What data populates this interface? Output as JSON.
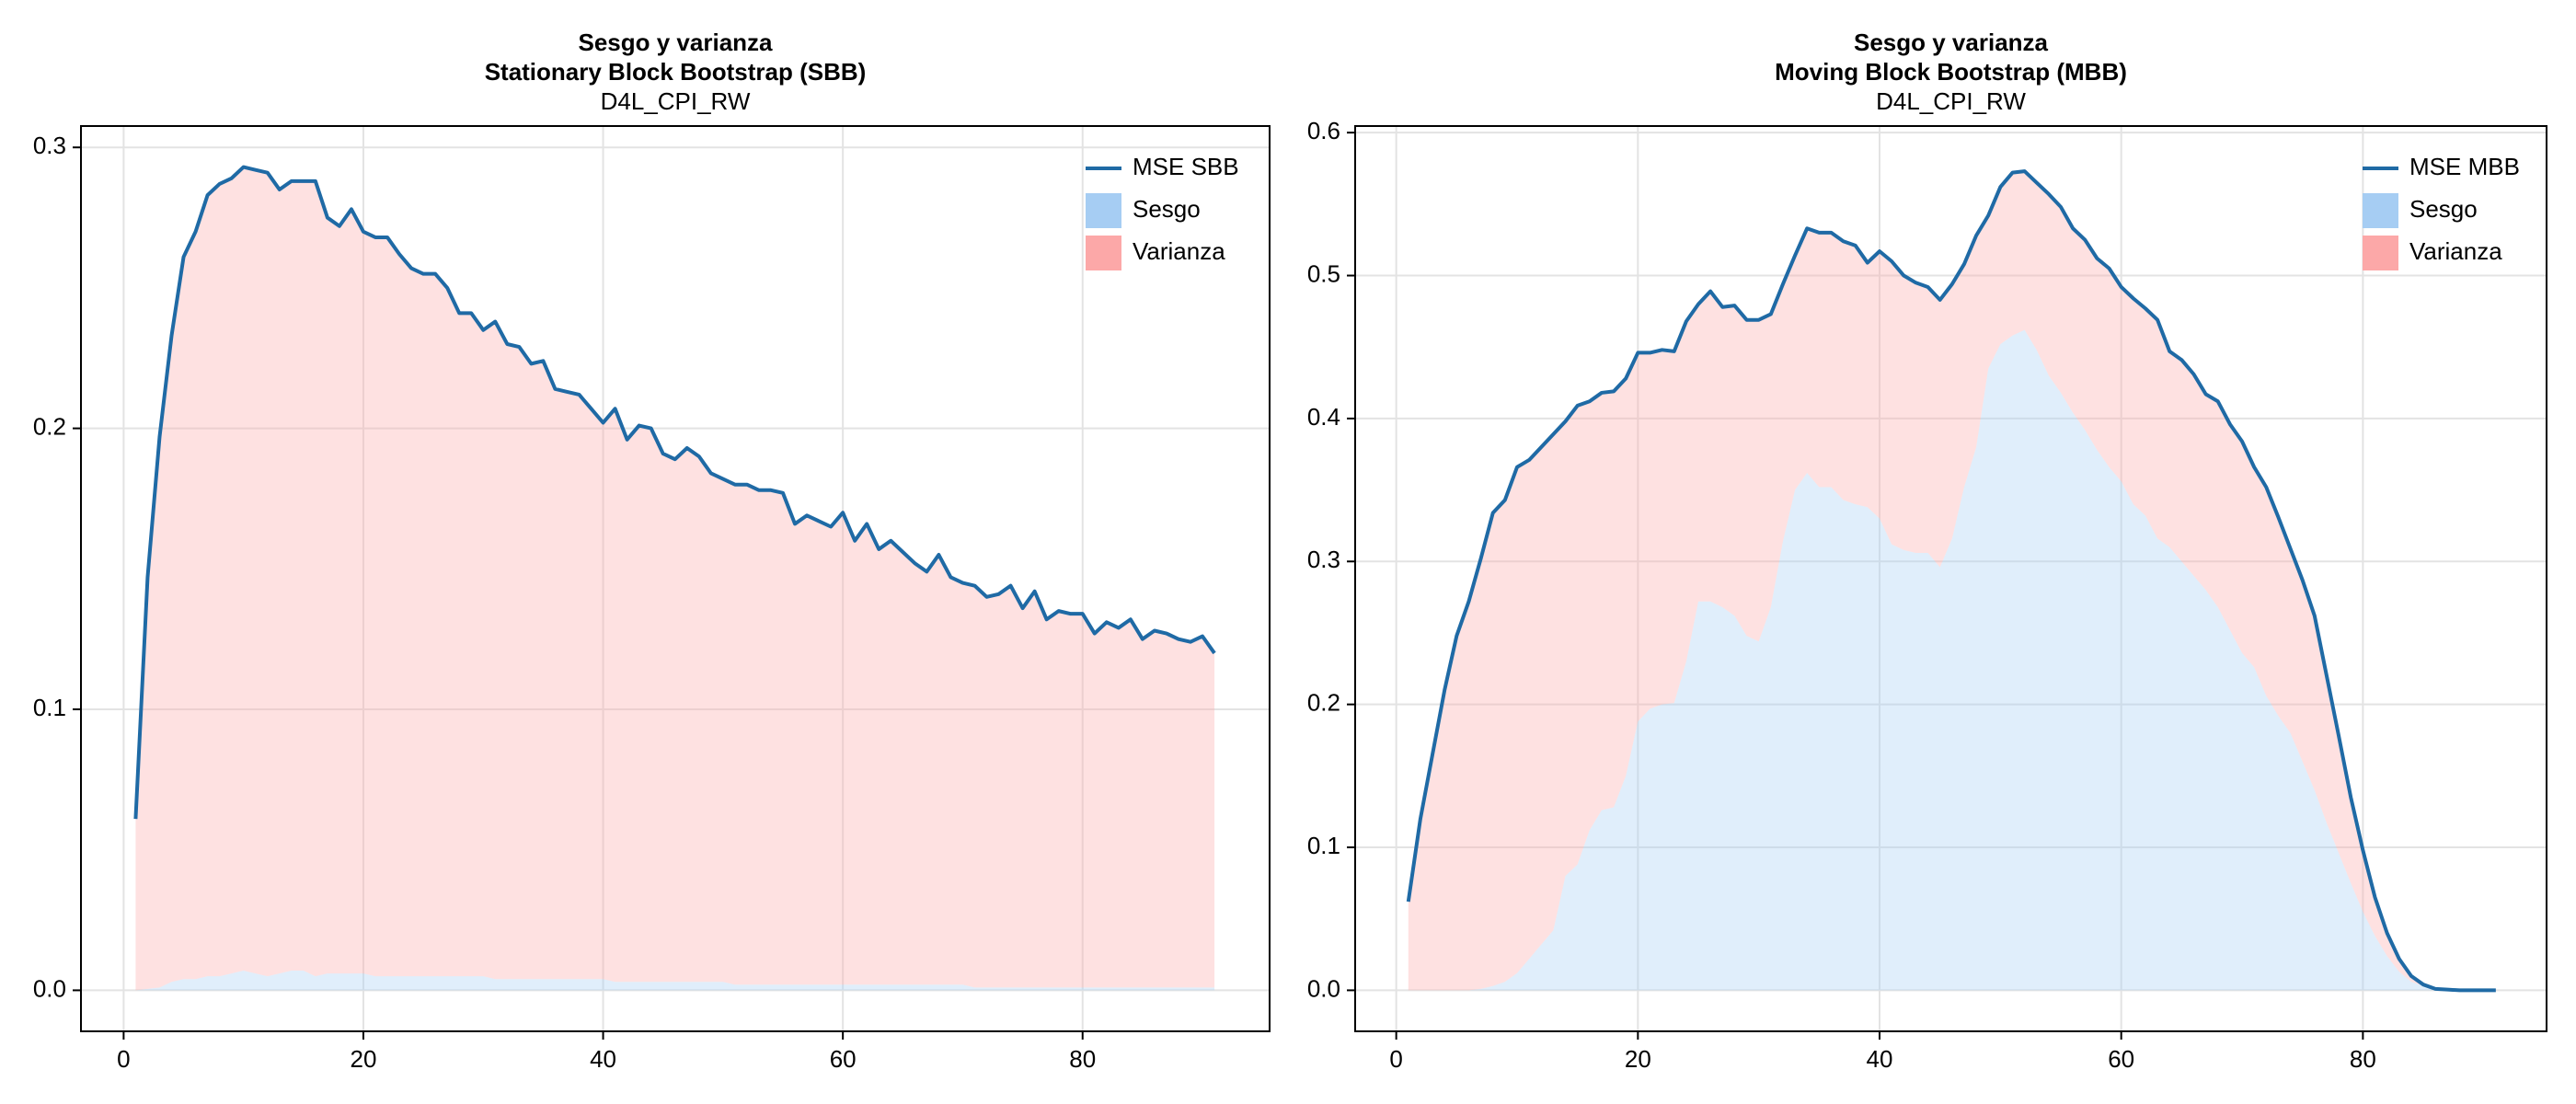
{
  "chart_data": [
    {
      "type": "area",
      "title": "Sesgo y varianza",
      "subtitle": "Stationary Block Bootstrap (SBB)",
      "variable": "D4L_CPI_RW",
      "x": [
        1,
        2,
        3,
        4,
        5,
        6,
        7,
        8,
        9,
        10,
        11,
        12,
        13,
        14,
        15,
        16,
        17,
        18,
        19,
        20,
        21,
        22,
        23,
        24,
        25,
        26,
        27,
        28,
        29,
        30,
        31,
        32,
        33,
        34,
        35,
        36,
        37,
        38,
        39,
        40,
        41,
        42,
        43,
        44,
        45,
        46,
        47,
        48,
        49,
        50,
        51,
        52,
        53,
        54,
        55,
        56,
        57,
        58,
        59,
        60,
        61,
        62,
        63,
        64,
        65,
        66,
        67,
        68,
        69,
        70,
        71,
        72,
        73,
        74,
        75,
        76,
        77,
        78,
        79,
        80,
        81,
        82,
        83,
        84,
        85,
        86,
        87,
        88,
        89,
        90,
        91
      ],
      "xlim": [
        -3.56,
        95.6
      ],
      "xticks": [
        0,
        20,
        40,
        60,
        80
      ],
      "ylim": [
        -0.0146,
        0.3076
      ],
      "yticks": [
        {
          "value": 0,
          "label": "0.0"
        },
        0.1,
        0.2,
        0.3
      ],
      "grid": true,
      "legend": "top-right",
      "series": [
        {
          "name": "MSE SBB",
          "mark": "line",
          "color": "#1f6aa5",
          "values": [
            0.061,
            0.147,
            0.197,
            0.233,
            0.261,
            0.27,
            0.283,
            0.287,
            0.289,
            0.293,
            0.292,
            0.291,
            0.285,
            0.288,
            0.288,
            0.288,
            0.275,
            0.272,
            0.278,
            0.27,
            0.268,
            0.268,
            0.262,
            0.257,
            0.255,
            0.255,
            0.25,
            0.241,
            0.241,
            0.235,
            0.238,
            0.23,
            0.229,
            0.223,
            0.224,
            0.214,
            0.213,
            0.212,
            0.207,
            0.202,
            0.207,
            0.196,
            0.201,
            0.2,
            0.191,
            0.189,
            0.193,
            0.19,
            0.184,
            0.182,
            0.18,
            0.18,
            0.178,
            0.178,
            0.177,
            0.166,
            0.169,
            0.167,
            0.165,
            0.17,
            0.16,
            0.166,
            0.157,
            0.16,
            0.156,
            0.152,
            0.149,
            0.155,
            0.147,
            0.145,
            0.144,
            0.14,
            0.141,
            0.144,
            0.136,
            0.142,
            0.132,
            0.135,
            0.134,
            0.134,
            0.127,
            0.131,
            0.129,
            0.132,
            0.125,
            0.128,
            0.127,
            0.125,
            0.124,
            0.126,
            0.12
          ]
        },
        {
          "name": "Sesgo",
          "mark": "area",
          "color": "#a6cdf3",
          "values": [
            0,
            0.0005,
            0.001,
            0.003,
            0.004,
            0.004,
            0.005,
            0.005,
            0.006,
            0.007,
            0.006,
            0.005,
            0.006,
            0.007,
            0.007,
            0.005,
            0.006,
            0.006,
            0.006,
            0.006,
            0.005,
            0.005,
            0.005,
            0.005,
            0.005,
            0.005,
            0.005,
            0.005,
            0.005,
            0.005,
            0.004,
            0.004,
            0.004,
            0.004,
            0.004,
            0.004,
            0.004,
            0.004,
            0.004,
            0.004,
            0.003,
            0.003,
            0.003,
            0.003,
            0.003,
            0.003,
            0.003,
            0.003,
            0.003,
            0.003,
            0.002,
            0.002,
            0.002,
            0.002,
            0.002,
            0.002,
            0.002,
            0.002,
            0.002,
            0.002,
            0.002,
            0.002,
            0.002,
            0.002,
            0.002,
            0.002,
            0.002,
            0.002,
            0.002,
            0.002,
            0.001,
            0.001,
            0.001,
            0.001,
            0.001,
            0.001,
            0.001,
            0.001,
            0.001,
            0.001,
            0.001,
            0.001,
            0.001,
            0.001,
            0.001,
            0.001,
            0.001,
            0.001,
            0.001,
            0.001,
            0.001
          ]
        },
        {
          "name": "Varianza",
          "mark": "area",
          "color": "#fca8a8",
          "values": [
            0.061,
            0.1465,
            0.196,
            0.23,
            0.257,
            0.266,
            0.278,
            0.282,
            0.283,
            0.286,
            0.286,
            0.286,
            0.279,
            0.281,
            0.281,
            0.283,
            0.269,
            0.266,
            0.272,
            0.264,
            0.263,
            0.263,
            0.257,
            0.252,
            0.25,
            0.25,
            0.245,
            0.236,
            0.236,
            0.23,
            0.234,
            0.226,
            0.225,
            0.219,
            0.22,
            0.21,
            0.209,
            0.208,
            0.203,
            0.198,
            0.204,
            0.193,
            0.198,
            0.197,
            0.188,
            0.186,
            0.19,
            0.187,
            0.181,
            0.179,
            0.178,
            0.178,
            0.176,
            0.176,
            0.175,
            0.164,
            0.167,
            0.165,
            0.163,
            0.168,
            0.158,
            0.164,
            0.155,
            0.158,
            0.154,
            0.15,
            0.147,
            0.153,
            0.145,
            0.143,
            0.143,
            0.139,
            0.14,
            0.143,
            0.135,
            0.141,
            0.131,
            0.134,
            0.133,
            0.133,
            0.126,
            0.13,
            0.128,
            0.131,
            0.124,
            0.127,
            0.126,
            0.124,
            0.123,
            0.125,
            0.119
          ]
        }
      ]
    },
    {
      "type": "area",
      "title": "Sesgo y varianza",
      "subtitle": "Moving Block Bootstrap (MBB)",
      "variable": "D4L_CPI_RW",
      "x": [
        1,
        2,
        3,
        4,
        5,
        6,
        7,
        8,
        9,
        10,
        11,
        12,
        13,
        14,
        15,
        16,
        17,
        18,
        19,
        20,
        21,
        22,
        23,
        24,
        25,
        26,
        27,
        28,
        29,
        30,
        31,
        32,
        33,
        34,
        35,
        36,
        37,
        38,
        39,
        40,
        41,
        42,
        43,
        44,
        45,
        46,
        47,
        48,
        49,
        50,
        51,
        52,
        53,
        54,
        55,
        56,
        57,
        58,
        59,
        60,
        61,
        62,
        63,
        64,
        65,
        66,
        67,
        68,
        69,
        70,
        71,
        72,
        73,
        74,
        75,
        76,
        77,
        78,
        79,
        80,
        81,
        82,
        83,
        84,
        85,
        86,
        87,
        88,
        89,
        90,
        91
      ],
      "xlim": [
        -3.4,
        95.2
      ],
      "xticks": [
        0,
        20,
        40,
        60,
        80
      ],
      "ylim": [
        -0.0287,
        0.6046
      ],
      "yticks": [
        {
          "value": 0,
          "label": "0.0"
        },
        0.1,
        0.2,
        0.3,
        0.4,
        0.5,
        0.6
      ],
      "grid": true,
      "legend": "top-right",
      "series": [
        {
          "name": "MSE MBB",
          "mark": "line",
          "color": "#1f6aa5",
          "values": [
            0.062,
            0.12,
            0.165,
            0.21,
            0.248,
            0.272,
            0.302,
            0.334,
            0.343,
            0.366,
            0.371,
            0.38,
            0.389,
            0.398,
            0.409,
            0.412,
            0.418,
            0.419,
            0.428,
            0.446,
            0.446,
            0.448,
            0.447,
            0.468,
            0.48,
            0.489,
            0.478,
            0.479,
            0.469,
            0.469,
            0.473,
            0.494,
            0.514,
            0.533,
            0.53,
            0.53,
            0.524,
            0.521,
            0.509,
            0.517,
            0.51,
            0.5,
            0.495,
            0.492,
            0.483,
            0.494,
            0.508,
            0.528,
            0.542,
            0.562,
            0.572,
            0.573,
            0.565,
            0.557,
            0.548,
            0.533,
            0.525,
            0.512,
            0.505,
            0.492,
            0.484,
            0.477,
            0.469,
            0.447,
            0.441,
            0.431,
            0.417,
            0.412,
            0.396,
            0.384,
            0.366,
            0.352,
            0.331,
            0.309,
            0.287,
            0.262,
            0.22,
            0.178,
            0.135,
            0.098,
            0.065,
            0.04,
            0.022,
            0.01,
            0.004,
            0.001,
            0.0005,
            0,
            0,
            0,
            0
          ]
        },
        {
          "name": "Sesgo",
          "mark": "area",
          "color": "#a6cdf3",
          "values": [
            0,
            0,
            0,
            0,
            0,
            0,
            0.001,
            0.003,
            0.006,
            0.012,
            0.022,
            0.032,
            0.042,
            0.08,
            0.088,
            0.112,
            0.126,
            0.128,
            0.15,
            0.188,
            0.197,
            0.2,
            0.201,
            0.23,
            0.272,
            0.272,
            0.268,
            0.262,
            0.248,
            0.244,
            0.268,
            0.314,
            0.35,
            0.362,
            0.352,
            0.352,
            0.343,
            0.34,
            0.338,
            0.33,
            0.312,
            0.308,
            0.306,
            0.306,
            0.296,
            0.316,
            0.352,
            0.38,
            0.435,
            0.452,
            0.458,
            0.462,
            0.448,
            0.43,
            0.418,
            0.404,
            0.392,
            0.378,
            0.366,
            0.356,
            0.34,
            0.332,
            0.316,
            0.31,
            0.3,
            0.29,
            0.28,
            0.268,
            0.252,
            0.236,
            0.226,
            0.206,
            0.192,
            0.18,
            0.16,
            0.14,
            0.117,
            0.096,
            0.075,
            0.055,
            0.038,
            0.024,
            0.013,
            0.006,
            0.003,
            0.001,
            0,
            0,
            0,
            0,
            0
          ]
        },
        {
          "name": "Varianza",
          "mark": "area",
          "color": "#fca8a8",
          "values": [
            0.062,
            0.12,
            0.165,
            0.21,
            0.248,
            0.272,
            0.301,
            0.331,
            0.337,
            0.354,
            0.349,
            0.348,
            0.347,
            0.318,
            0.321,
            0.3,
            0.292,
            0.291,
            0.278,
            0.258,
            0.249,
            0.248,
            0.246,
            0.238,
            0.208,
            0.217,
            0.21,
            0.217,
            0.221,
            0.225,
            0.205,
            0.18,
            0.164,
            0.171,
            0.178,
            0.178,
            0.181,
            0.181,
            0.171,
            0.187,
            0.198,
            0.192,
            0.189,
            0.186,
            0.187,
            0.178,
            0.156,
            0.148,
            0.107,
            0.11,
            0.114,
            0.111,
            0.117,
            0.127,
            0.13,
            0.129,
            0.133,
            0.134,
            0.139,
            0.136,
            0.144,
            0.145,
            0.153,
            0.137,
            0.141,
            0.141,
            0.137,
            0.144,
            0.144,
            0.148,
            0.14,
            0.146,
            0.139,
            0.129,
            0.127,
            0.122,
            0.103,
            0.082,
            0.06,
            0.043,
            0.027,
            0.016,
            0.009,
            0.004,
            0.001,
            0,
            0.0005,
            0,
            0,
            0,
            0
          ]
        }
      ]
    }
  ]
}
